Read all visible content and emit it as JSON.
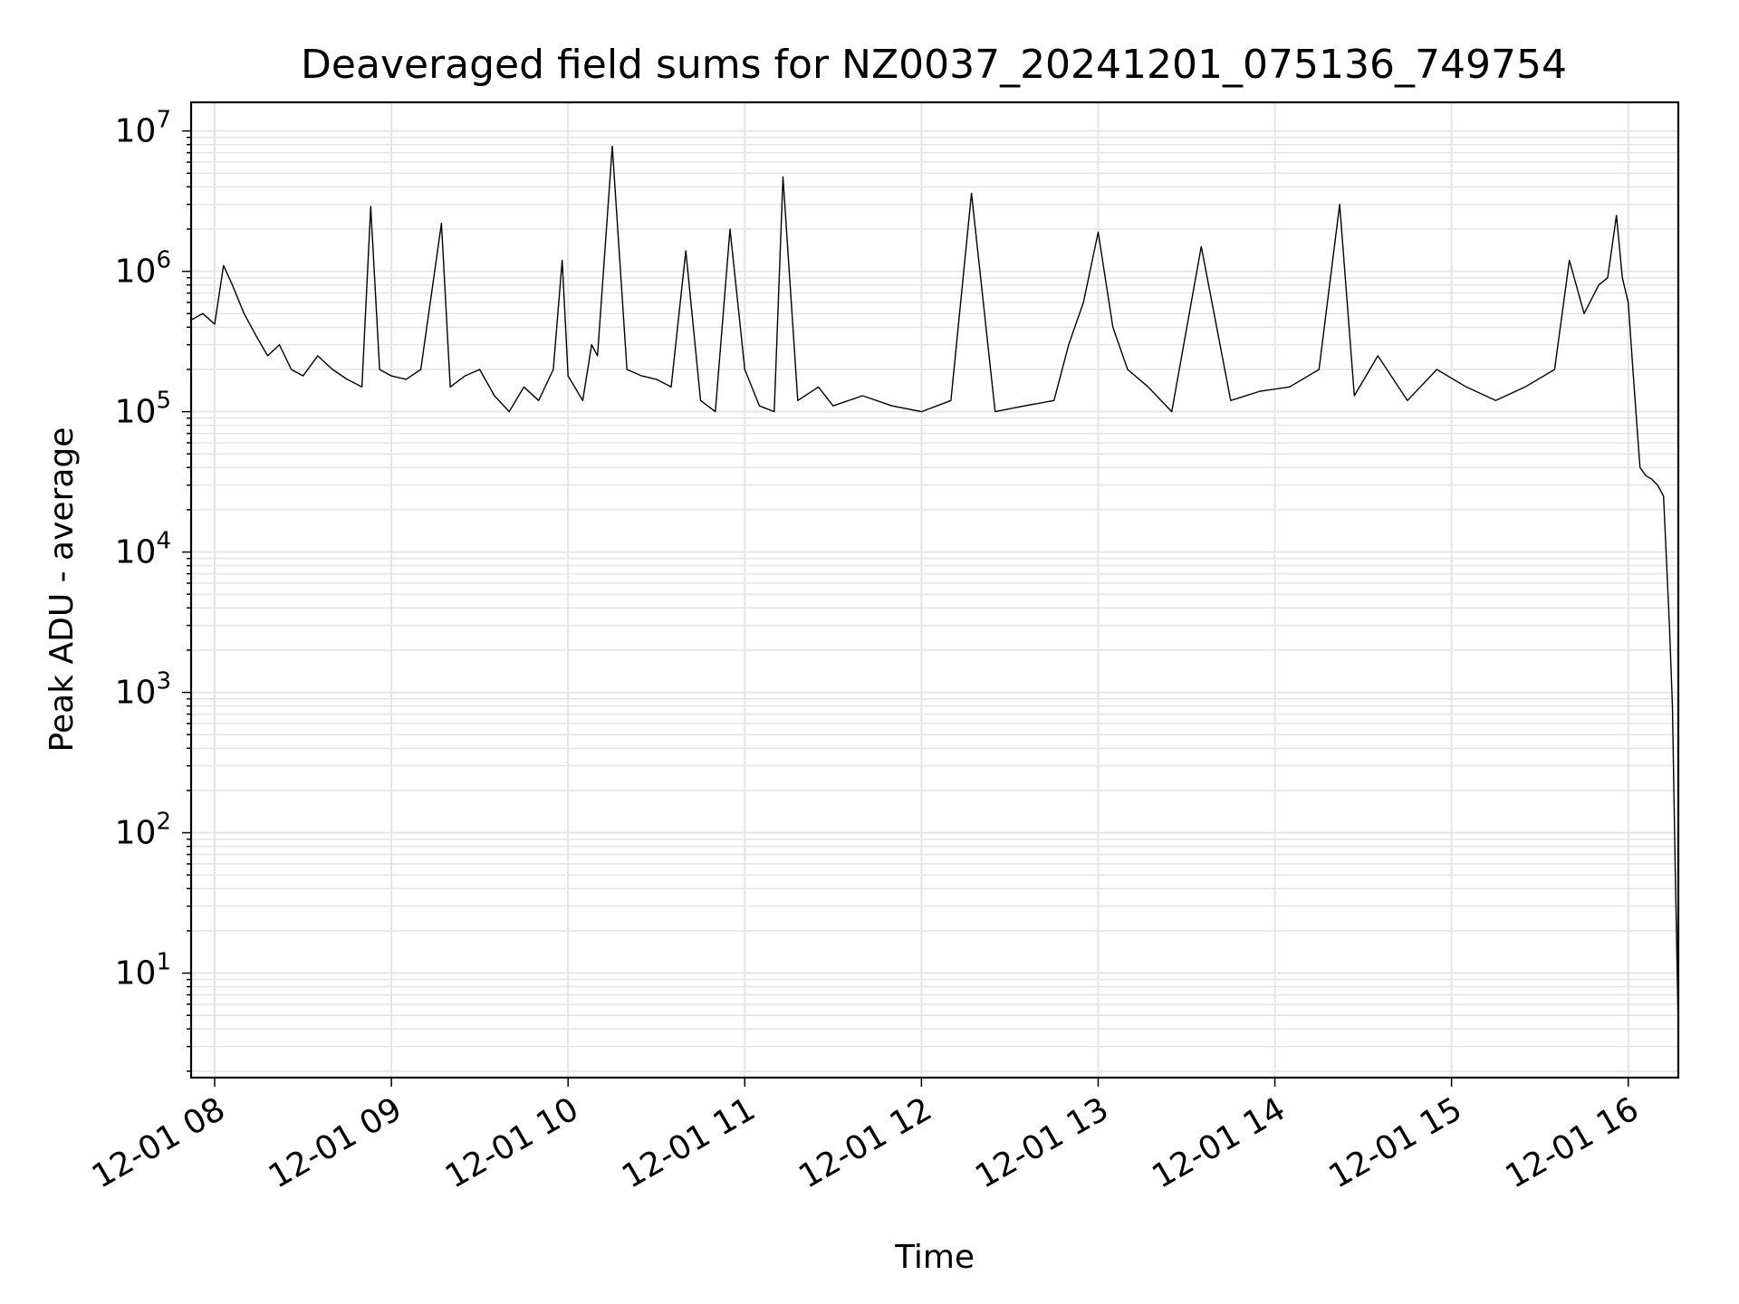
{
  "chart_data": {
    "type": "line",
    "title": "Deaveraged field sums for NZ0037_20241201_075136_749754",
    "xlabel": "Time",
    "ylabel": "Peak ADU - average",
    "x_scale": "time",
    "y_scale": "log",
    "xlim": [
      "2024-12-01 07:52",
      "2024-12-01 16:17"
    ],
    "ylim": [
      1.8,
      16000000.0
    ],
    "grid": true,
    "line_color": "#000000",
    "grid_color": "#e5e5e5",
    "x_ticks": [
      "12-01 08",
      "12-01 09",
      "12-01 10",
      "12-01 11",
      "12-01 12",
      "12-01 13",
      "12-01 14",
      "12-01 15",
      "12-01 16"
    ],
    "y_ticks": [
      {
        "base": "10",
        "exp": "1",
        "value": 10
      },
      {
        "base": "10",
        "exp": "2",
        "value": 100
      },
      {
        "base": "10",
        "exp": "3",
        "value": 1000
      },
      {
        "base": "10",
        "exp": "4",
        "value": 10000
      },
      {
        "base": "10",
        "exp": "5",
        "value": 100000
      },
      {
        "base": "10",
        "exp": "6",
        "value": 1000000
      },
      {
        "base": "10",
        "exp": "7",
        "value": 10000000
      }
    ],
    "series": [
      {
        "x": [
          "2024-12-01 07:52",
          "2024-12-01 07:56",
          "2024-12-01 08:00",
          "2024-12-01 08:03",
          "2024-12-01 08:06",
          "2024-12-01 08:10",
          "2024-12-01 08:14",
          "2024-12-01 08:18",
          "2024-12-01 08:22",
          "2024-12-01 08:26",
          "2024-12-01 08:30",
          "2024-12-01 08:35",
          "2024-12-01 08:40",
          "2024-12-01 08:45",
          "2024-12-01 08:50",
          "2024-12-01 08:53",
          "2024-12-01 08:56",
          "2024-12-01 09:00",
          "2024-12-01 09:05",
          "2024-12-01 09:10",
          "2024-12-01 09:17",
          "2024-12-01 09:20",
          "2024-12-01 09:25",
          "2024-12-01 09:30",
          "2024-12-01 09:35",
          "2024-12-01 09:40",
          "2024-12-01 09:45",
          "2024-12-01 09:50",
          "2024-12-01 09:55",
          "2024-12-01 09:58",
          "2024-12-01 10:00",
          "2024-12-01 10:05",
          "2024-12-01 10:08",
          "2024-12-01 10:10",
          "2024-12-01 10:15",
          "2024-12-01 10:20",
          "2024-12-01 10:25",
          "2024-12-01 10:30",
          "2024-12-01 10:35",
          "2024-12-01 10:40",
          "2024-12-01 10:45",
          "2024-12-01 10:50",
          "2024-12-01 10:55",
          "2024-12-01 11:00",
          "2024-12-01 11:05",
          "2024-12-01 11:10",
          "2024-12-01 11:13",
          "2024-12-01 11:18",
          "2024-12-01 11:25",
          "2024-12-01 11:30",
          "2024-12-01 11:40",
          "2024-12-01 11:50",
          "2024-12-01 12:00",
          "2024-12-01 12:10",
          "2024-12-01 12:17",
          "2024-12-01 12:25",
          "2024-12-01 12:35",
          "2024-12-01 12:45",
          "2024-12-01 12:50",
          "2024-12-01 12:55",
          "2024-12-01 13:00",
          "2024-12-01 13:05",
          "2024-12-01 13:10",
          "2024-12-01 13:17",
          "2024-12-01 13:25",
          "2024-12-01 13:35",
          "2024-12-01 13:45",
          "2024-12-01 13:55",
          "2024-12-01 14:05",
          "2024-12-01 14:15",
          "2024-12-01 14:22",
          "2024-12-01 14:27",
          "2024-12-01 14:35",
          "2024-12-01 14:45",
          "2024-12-01 14:55",
          "2024-12-01 15:05",
          "2024-12-01 15:15",
          "2024-12-01 15:25",
          "2024-12-01 15:35",
          "2024-12-01 15:40",
          "2024-12-01 15:45",
          "2024-12-01 15:50",
          "2024-12-01 15:53",
          "2024-12-01 15:56",
          "2024-12-01 15:58",
          "2024-12-01 16:00",
          "2024-12-01 16:02",
          "2024-12-01 16:04",
          "2024-12-01 16:06",
          "2024-12-01 16:08",
          "2024-12-01 16:10",
          "2024-12-01 16:12",
          "2024-12-01 16:14",
          "2024-12-01 16:15",
          "2024-12-01 16:16",
          "2024-12-01 16:17"
        ],
        "y": [
          450000,
          500000,
          420000,
          1100000,
          800000,
          500000,
          350000,
          250000,
          300000,
          200000,
          180000,
          250000,
          200000,
          170000,
          150000,
          2900000,
          200000,
          180000,
          170000,
          200000,
          2200000,
          150000,
          180000,
          200000,
          130000,
          100000,
          150000,
          120000,
          200000,
          1200000,
          180000,
          120000,
          300000,
          250000,
          7800000,
          200000,
          180000,
          170000,
          150000,
          1400000,
          120000,
          100000,
          2000000,
          200000,
          110000,
          100000,
          4700000,
          120000,
          150000,
          110000,
          130000,
          110000,
          100000,
          120000,
          3600000,
          100000,
          110000,
          120000,
          300000,
          600000,
          1900000,
          400000,
          200000,
          150000,
          100000,
          1500000,
          120000,
          140000,
          150000,
          200000,
          3000000,
          130000,
          250000,
          120000,
          200000,
          150000,
          120000,
          150000,
          200000,
          1200000,
          500000,
          800000,
          900000,
          2500000,
          900000,
          600000,
          150000,
          40000,
          35000,
          33000,
          30000,
          25000,
          3000,
          800,
          50,
          4
        ]
      }
    ]
  }
}
